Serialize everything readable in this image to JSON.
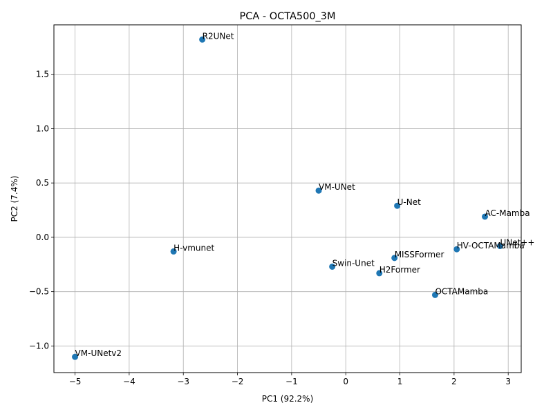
{
  "chart_data": {
    "type": "scatter",
    "title": "PCA - OCTA500_3M",
    "xlabel": "PC1 (92.2%)",
    "ylabel": "PC2 (7.4%)",
    "xlim": [
      -5.39,
      3.24
    ],
    "ylim": [
      -1.245,
      1.955
    ],
    "xticks": [
      -5,
      -4,
      -3,
      -2,
      -1,
      0,
      1,
      2,
      3
    ],
    "xtick_labels": [
      "−5",
      "−4",
      "−3",
      "−2",
      "−1",
      "0",
      "1",
      "2",
      "3"
    ],
    "yticks": [
      -1.0,
      -0.5,
      0.0,
      0.5,
      1.0,
      1.5
    ],
    "ytick_labels": [
      "−1.0",
      "−0.5",
      "0.0",
      "0.5",
      "1.0",
      "1.5"
    ],
    "grid": true,
    "marker_color": "#1f77b4",
    "points": [
      {
        "label": "R2UNet",
        "x": -2.65,
        "y": 1.82
      },
      {
        "label": "VM-UNet",
        "x": -0.5,
        "y": 0.43
      },
      {
        "label": "U-Net",
        "x": 0.95,
        "y": 0.29
      },
      {
        "label": "AC-Mamba",
        "x": 2.57,
        "y": 0.19
      },
      {
        "label": "UNet++",
        "x": 2.85,
        "y": -0.08
      },
      {
        "label": "HV-OCTAMamba",
        "x": 2.05,
        "y": -0.11
      },
      {
        "label": "H-vmunet",
        "x": -3.18,
        "y": -0.13
      },
      {
        "label": "MISSFormer",
        "x": 0.9,
        "y": -0.19
      },
      {
        "label": "Swin-Unet",
        "x": -0.25,
        "y": -0.27
      },
      {
        "label": "H2Former",
        "x": 0.62,
        "y": -0.33
      },
      {
        "label": "OCTAMamba",
        "x": 1.65,
        "y": -0.53
      },
      {
        "label": "VM-UNetv2",
        "x": -5.0,
        "y": -1.1
      }
    ]
  }
}
